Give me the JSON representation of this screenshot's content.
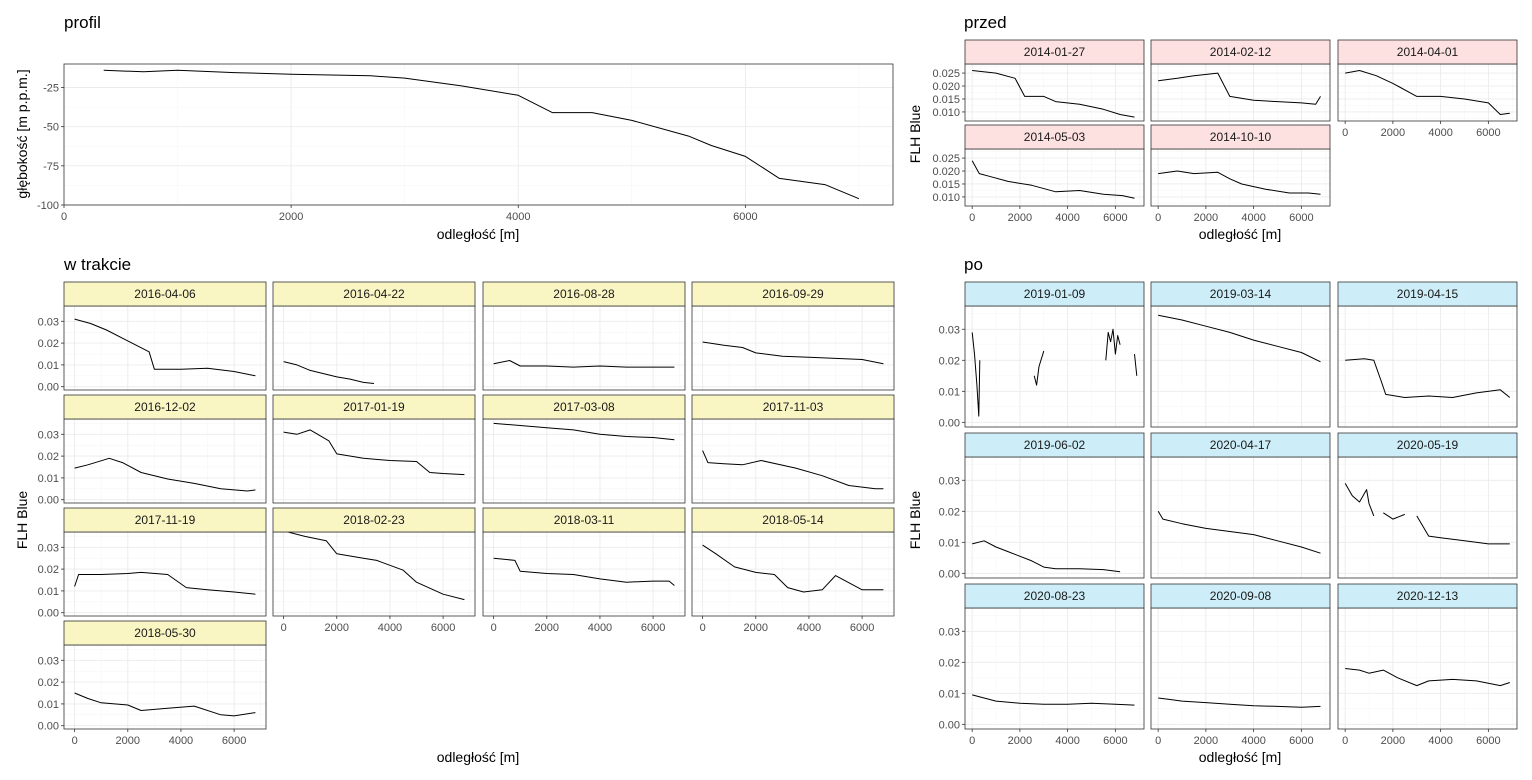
{
  "colors": {
    "przed_strip": "#fde0e0",
    "w_trakcie_strip": "#faf6c4",
    "po_strip": "#cdeef8",
    "line": "#000000",
    "grid": "#ebebeb",
    "panel_border": "#333333",
    "tick_text": "#4d4d4d"
  },
  "chart_data": [
    {
      "id": "profil",
      "type": "line",
      "title": "profil",
      "xlabel": "odległość [m]",
      "ylabel": "głębokość [m p.p.m.]",
      "xlim": [
        0,
        7300
      ],
      "ylim": [
        -100,
        -10
      ],
      "xticks": [
        0,
        2000,
        4000,
        6000
      ],
      "yticks": [
        -100,
        -75,
        -50,
        -25
      ],
      "grid": true,
      "series": [
        {
          "x": [
            350,
            700,
            1000,
            1500,
            2000,
            2700,
            3000,
            3500,
            4000,
            4300,
            4650,
            5000,
            5500,
            5700,
            6000,
            6300,
            6700,
            7000
          ],
          "y": [
            -14,
            -15,
            -14,
            -15.5,
            -16.5,
            -17.5,
            -19,
            -24,
            -30,
            -41,
            -41,
            -46,
            -56,
            -62,
            -69,
            -83,
            -87,
            -96
          ]
        }
      ]
    },
    {
      "id": "przed",
      "type": "line",
      "title": "przed",
      "xlabel": "odległość [m]",
      "ylabel": "FLH Blue",
      "xlim": [
        -300,
        7200
      ],
      "ylim": [
        0.0065,
        0.0285
      ],
      "xticks": [
        0,
        2000,
        4000,
        6000
      ],
      "yticks": [
        0.01,
        0.015,
        0.02,
        0.025
      ],
      "ytick_labels": [
        "0.010",
        "0.015",
        "0.020",
        "0.025"
      ],
      "grid": true,
      "legend": "none",
      "panels": [
        {
          "label": "2014-01-27",
          "x": [
            0,
            1000,
            1800,
            2200,
            3000,
            3500,
            4500,
            5500,
            6200,
            6800
          ],
          "y": [
            0.026,
            0.025,
            0.023,
            0.016,
            0.016,
            0.014,
            0.013,
            0.011,
            0.009,
            0.008
          ]
        },
        {
          "label": "2014-02-12",
          "x": [
            0,
            800,
            1500,
            2500,
            3000,
            4000,
            5000,
            6000,
            6600,
            6800
          ],
          "y": [
            0.022,
            0.023,
            0.024,
            0.025,
            0.016,
            0.0145,
            0.014,
            0.0135,
            0.013,
            0.016
          ]
        },
        {
          "label": "2014-04-01",
          "x": [
            0,
            600,
            1300,
            2000,
            3000,
            4000,
            5000,
            6000,
            6500,
            6900
          ],
          "y": [
            0.025,
            0.026,
            0.024,
            0.021,
            0.016,
            0.016,
            0.015,
            0.0135,
            0.009,
            0.0095
          ]
        },
        {
          "label": "2014-05-03",
          "x": [
            0,
            300,
            700,
            1500,
            2500,
            3500,
            4500,
            5500,
            6300,
            6800
          ],
          "y": [
            0.024,
            0.019,
            0.018,
            0.016,
            0.0145,
            0.012,
            0.0125,
            0.011,
            0.0105,
            0.0095
          ]
        },
        {
          "label": "2014-10-10",
          "x": [
            0,
            800,
            1500,
            2500,
            3000,
            3500,
            4500,
            5500,
            6300,
            6800
          ],
          "y": [
            0.019,
            0.02,
            0.019,
            0.0195,
            0.017,
            0.015,
            0.013,
            0.0115,
            0.0115,
            0.011
          ]
        }
      ]
    },
    {
      "id": "w_trakcie",
      "type": "line",
      "title": "w trakcie",
      "xlabel": "odległość [m]",
      "ylabel": "FLH Blue",
      "xlim": [
        -400,
        7200
      ],
      "ylim": [
        -0.0015,
        0.037
      ],
      "xticks": [
        0,
        2000,
        4000,
        6000
      ],
      "yticks": [
        0,
        0.01,
        0.02,
        0.03
      ],
      "ytick_labels": [
        "0.00",
        "0.01",
        "0.02",
        "0.03"
      ],
      "grid": true,
      "legend": "none",
      "panels": [
        {
          "label": "2016-04-06",
          "x": [
            0,
            600,
            1200,
            2000,
            2800,
            3000,
            4000,
            5000,
            6000,
            6800
          ],
          "y": [
            0.031,
            0.029,
            0.026,
            0.021,
            0.016,
            0.008,
            0.008,
            0.0085,
            0.007,
            0.005
          ]
        },
        {
          "label": "2016-04-22",
          "x": [
            0,
            500,
            1000,
            1500,
            2000,
            2500,
            3000,
            3400
          ],
          "y": [
            0.0115,
            0.01,
            0.0075,
            0.006,
            0.0045,
            0.0035,
            0.002,
            0.0015
          ]
        },
        {
          "label": "2016-08-28",
          "x": [
            0,
            600,
            1000,
            2000,
            3000,
            4000,
            5000,
            6000,
            6800
          ],
          "y": [
            0.0105,
            0.012,
            0.0095,
            0.0095,
            0.009,
            0.0095,
            0.009,
            0.009,
            0.009
          ]
        },
        {
          "label": "2016-09-29",
          "x": [
            0,
            800,
            1500,
            2000,
            3000,
            4000,
            5000,
            6000,
            6800
          ],
          "y": [
            0.0205,
            0.019,
            0.018,
            0.0155,
            0.014,
            0.0135,
            0.013,
            0.0125,
            0.0105
          ]
        },
        {
          "label": "2016-12-02",
          "x": [
            0,
            500,
            1300,
            1800,
            2500,
            3500,
            4500,
            5500,
            6500,
            6800
          ],
          "y": [
            0.0145,
            0.016,
            0.019,
            0.017,
            0.0125,
            0.0095,
            0.0075,
            0.005,
            0.004,
            0.0045
          ]
        },
        {
          "label": "2017-01-19",
          "x": [
            0,
            500,
            1000,
            1700,
            2000,
            3000,
            4000,
            5000,
            5500,
            6000,
            6800
          ],
          "y": [
            0.031,
            0.03,
            0.032,
            0.027,
            0.021,
            0.019,
            0.018,
            0.0175,
            0.0125,
            0.012,
            0.0115
          ]
        },
        {
          "label": "2017-03-08",
          "x": [
            0,
            1000,
            2000,
            3000,
            4000,
            5000,
            6000,
            6800
          ],
          "y": [
            0.035,
            0.034,
            0.033,
            0.032,
            0.03,
            0.029,
            0.0285,
            0.0275
          ]
        },
        {
          "label": "2017-11-03",
          "x": [
            0,
            200,
            800,
            1500,
            2200,
            3500,
            4500,
            5500,
            6500,
            6800
          ],
          "y": [
            0.0225,
            0.017,
            0.0165,
            0.016,
            0.018,
            0.0145,
            0.011,
            0.0065,
            0.005,
            0.005
          ]
        },
        {
          "label": "2017-11-19",
          "x": [
            0,
            150,
            1000,
            2000,
            2500,
            3500,
            4200,
            5000,
            6000,
            6800
          ],
          "y": [
            0.012,
            0.0175,
            0.0175,
            0.018,
            0.0185,
            0.0175,
            0.0115,
            0.0105,
            0.0095,
            0.0085
          ]
        },
        {
          "label": "2018-02-23",
          "x": [
            0,
            800,
            1600,
            2000,
            3000,
            3500,
            4500,
            5000,
            6000,
            6800
          ],
          "y": [
            0.0375,
            0.035,
            0.033,
            0.027,
            0.025,
            0.024,
            0.0195,
            0.014,
            0.0085,
            0.006
          ]
        },
        {
          "label": "2018-03-11",
          "x": [
            0,
            800,
            1000,
            2000,
            3000,
            4000,
            5000,
            6000,
            6600,
            6800
          ],
          "y": [
            0.025,
            0.024,
            0.019,
            0.018,
            0.0175,
            0.0155,
            0.014,
            0.0145,
            0.0145,
            0.0125
          ]
        },
        {
          "label": "2018-05-14",
          "x": [
            0,
            500,
            1200,
            2000,
            2700,
            3200,
            3800,
            4500,
            5000,
            6000,
            6800
          ],
          "y": [
            0.031,
            0.027,
            0.021,
            0.0185,
            0.0175,
            0.0115,
            0.0095,
            0.0105,
            0.017,
            0.0105,
            0.0105
          ]
        },
        {
          "label": "2018-05-30",
          "x": [
            0,
            500,
            1000,
            2000,
            2500,
            3500,
            4500,
            5500,
            6000,
            6800
          ],
          "y": [
            0.015,
            0.0125,
            0.0105,
            0.0095,
            0.007,
            0.008,
            0.009,
            0.005,
            0.0045,
            0.006
          ]
        }
      ]
    },
    {
      "id": "po",
      "type": "line",
      "title": "po",
      "xlabel": "odległość [m]",
      "ylabel": "FLH Blue",
      "xlim": [
        -300,
        7200
      ],
      "ylim": [
        -0.0015,
        0.0375
      ],
      "xticks": [
        0,
        2000,
        4000,
        6000
      ],
      "yticks": [
        0,
        0.01,
        0.02,
        0.03
      ],
      "ytick_labels": [
        "0.00",
        "0.01",
        "0.02",
        "0.03"
      ],
      "grid": true,
      "legend": "none",
      "panels": [
        {
          "label": "2019-01-09",
          "segments": [
            {
              "x": [
                0,
                100,
                200,
                280,
                320
              ],
              "y": [
                0.029,
                0.022,
                0.012,
                0.002,
                0.02
              ]
            },
            {
              "x": [
                2600,
                2700,
                2800,
                3000
              ],
              "y": [
                0.015,
                0.012,
                0.018,
                0.023
              ]
            },
            {
              "x": [
                5600,
                5700,
                5800,
                5900,
                6000,
                6100,
                6200
              ],
              "y": [
                0.02,
                0.029,
                0.026,
                0.03,
                0.022,
                0.028,
                0.025
              ]
            },
            {
              "x": [
                6800,
                6900
              ],
              "y": [
                0.022,
                0.015
              ]
            }
          ]
        },
        {
          "label": "2019-03-14",
          "x": [
            0,
            1000,
            2000,
            3000,
            4000,
            5000,
            6000,
            6800
          ],
          "y": [
            0.0345,
            0.033,
            0.031,
            0.029,
            0.0265,
            0.0245,
            0.0225,
            0.0195
          ]
        },
        {
          "label": "2019-04-15",
          "x": [
            0,
            800,
            1200,
            1500,
            1700,
            2500,
            3500,
            4500,
            5500,
            6500,
            6900
          ],
          "y": [
            0.02,
            0.0205,
            0.02,
            0.0135,
            0.009,
            0.008,
            0.0085,
            0.008,
            0.0095,
            0.0105,
            0.008
          ]
        },
        {
          "label": "2019-06-02",
          "x": [
            0,
            500,
            1000,
            1500,
            2500,
            3000,
            3500,
            4500,
            5500,
            6200
          ],
          "y": [
            0.0095,
            0.0105,
            0.0085,
            0.007,
            0.004,
            0.002,
            0.0015,
            0.0015,
            0.0012,
            0.0005
          ]
        },
        {
          "label": "2020-04-17",
          "x": [
            0,
            200,
            1000,
            2000,
            3000,
            4000,
            5000,
            6000,
            6800
          ],
          "y": [
            0.02,
            0.0175,
            0.016,
            0.0145,
            0.0135,
            0.0125,
            0.0105,
            0.0085,
            0.0065
          ]
        },
        {
          "label": "2020-05-19",
          "segments": [
            {
              "x": [
                0,
                300,
                600,
                900,
                1000,
                1200
              ],
              "y": [
                0.029,
                0.025,
                0.023,
                0.027,
                0.0225,
                0.0185
              ]
            },
            {
              "x": [
                1600,
                2000,
                2500
              ],
              "y": [
                0.0195,
                0.0175,
                0.019
              ]
            },
            {
              "x": [
                3000,
                3500,
                4000,
                5000,
                6000,
                6900
              ],
              "y": [
                0.0185,
                0.012,
                0.0115,
                0.0105,
                0.0095,
                0.0095
              ]
            }
          ]
        },
        {
          "label": "2020-08-23",
          "x": [
            0,
            500,
            1000,
            2000,
            3000,
            4000,
            5000,
            6000,
            6800
          ],
          "y": [
            0.0095,
            0.0085,
            0.0075,
            0.0068,
            0.0065,
            0.0065,
            0.0068,
            0.0065,
            0.0062
          ]
        },
        {
          "label": "2020-09-08",
          "x": [
            0,
            500,
            1000,
            2000,
            3000,
            4000,
            5000,
            6000,
            6800
          ],
          "y": [
            0.0085,
            0.008,
            0.0075,
            0.007,
            0.0065,
            0.006,
            0.0058,
            0.0055,
            0.0058
          ]
        },
        {
          "label": "2020-12-13",
          "x": [
            0,
            600,
            1000,
            1600,
            2200,
            3000,
            3500,
            4500,
            5500,
            6500,
            6900
          ],
          "y": [
            0.018,
            0.0175,
            0.0165,
            0.0175,
            0.015,
            0.0125,
            0.014,
            0.0145,
            0.014,
            0.0125,
            0.0135
          ]
        }
      ]
    }
  ]
}
